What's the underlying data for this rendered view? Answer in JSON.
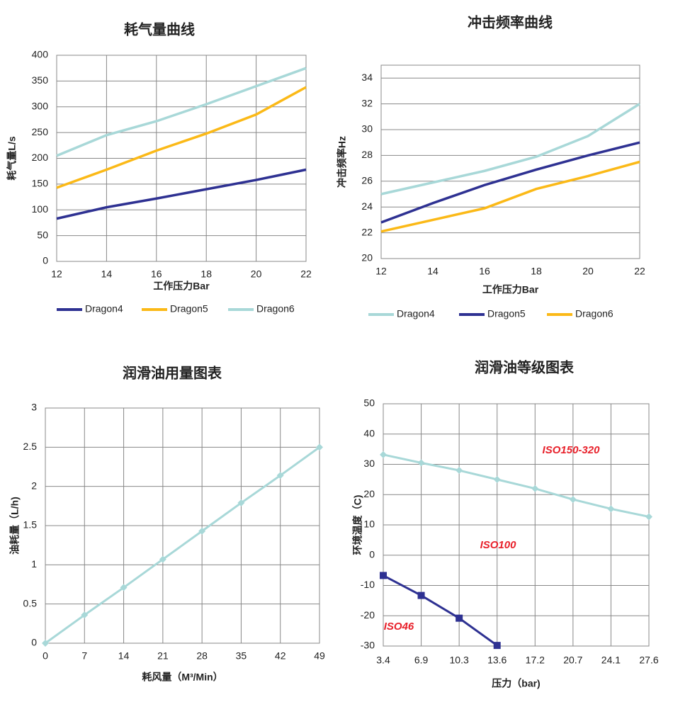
{
  "chart_data": [
    {
      "type": "line",
      "title": "耗气量曲线",
      "x_label": "工作压力Bar",
      "y_label": "耗气量L/s",
      "x": [
        12,
        14,
        16,
        18,
        20,
        22
      ],
      "xlim": [
        12,
        22
      ],
      "xticks": [
        12,
        14,
        16,
        18,
        20,
        22
      ],
      "ylim": [
        0,
        400
      ],
      "yticks": [
        0,
        50,
        100,
        150,
        200,
        250,
        300,
        350,
        400
      ],
      "grid": "both",
      "legend": "bottom",
      "series": [
        {
          "name": "Dragon4",
          "color": "#2e3192",
          "values": [
            83,
            105,
            122,
            140,
            158,
            178
          ]
        },
        {
          "name": "Dragon5",
          "color": "#fbb917",
          "values": [
            143,
            178,
            215,
            248,
            285,
            338
          ]
        },
        {
          "name": "Dragon6",
          "color": "#a8d8d8",
          "values": [
            205,
            245,
            272,
            305,
            340,
            375
          ]
        }
      ]
    },
    {
      "type": "line",
      "title": "冲击频率曲线",
      "x_label": "工作压力Bar",
      "y_label": "冲击频率Hz",
      "x": [
        12,
        14,
        16,
        18,
        20,
        22
      ],
      "xlim": [
        12,
        22
      ],
      "xticks": [
        12,
        14,
        16,
        18,
        20,
        22
      ],
      "ylim": [
        20,
        35
      ],
      "yticks": [
        20,
        22,
        24,
        26,
        28,
        30,
        32,
        34
      ],
      "grid": "y",
      "legend": "bottom",
      "series": [
        {
          "name": "Dragon4",
          "color": "#a8d8d8",
          "values": [
            25,
            25.9,
            26.8,
            27.9,
            29.5,
            32
          ]
        },
        {
          "name": "Dragon5",
          "color": "#2e3192",
          "values": [
            22.8,
            24.3,
            25.7,
            26.9,
            28,
            29
          ]
        },
        {
          "name": "Dragon6",
          "color": "#fbb917",
          "values": [
            22.1,
            23,
            23.9,
            25.4,
            26.4,
            27.5
          ]
        }
      ]
    },
    {
      "type": "line",
      "title": "润滑油用量图表",
      "x_label": "耗风量（M³/Min）",
      "y_label": "油耗量（L/h)",
      "x": [
        0,
        7,
        14,
        21,
        28,
        35,
        42,
        49
      ],
      "xlim": [
        0,
        49
      ],
      "xticks": [
        0,
        7,
        14,
        21,
        28,
        35,
        42,
        49
      ],
      "ylim": [
        0,
        3
      ],
      "yticks": [
        0,
        0.5,
        1,
        1.5,
        2,
        2.5,
        3
      ],
      "grid": "both",
      "series": [
        {
          "color": "#a8d8d8",
          "marker": "diamond",
          "values": [
            0,
            0.36,
            0.71,
            1.07,
            1.43,
            1.79,
            2.14,
            2.5
          ]
        }
      ]
    },
    {
      "type": "line",
      "title": "润滑油等级图表",
      "x_label": "压力（bar)",
      "y_label": "环境温度（C)",
      "categories": [
        "3.4",
        "6.9",
        "10.3",
        "13.6",
        "17.2",
        "20.7",
        "24.1",
        "27.6"
      ],
      "ylim": [
        -30,
        50
      ],
      "yticks": [
        -30,
        -20,
        -10,
        0,
        10,
        20,
        30,
        40,
        50
      ],
      "grid": "both",
      "annotations": [
        "ISO150-320",
        "ISO100",
        "ISO46"
      ],
      "annotation_color": "#e8202a",
      "series": [
        {
          "color": "#a8d8d8",
          "marker": "diamond",
          "values": [
            33.2,
            30.5,
            28,
            25,
            22,
            18.4,
            15.3,
            12.7
          ]
        },
        {
          "color": "#2e3192",
          "marker": "square",
          "values": [
            -6.7,
            -13.3,
            -20.8,
            -29.8,
            null,
            null,
            null,
            null
          ]
        }
      ]
    }
  ]
}
